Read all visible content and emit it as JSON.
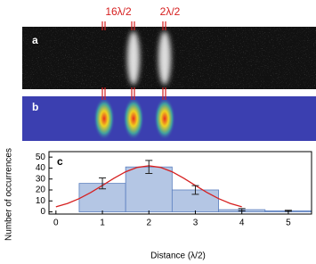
{
  "figure": {
    "top_labels": [
      "16λ/2",
      "2λ/2"
    ],
    "panels": [
      "a",
      "b",
      "c"
    ]
  },
  "chart_data": {
    "type": "histogram",
    "xlabel": "Distance (λ/2)",
    "ylabel": "Number of occurrences",
    "bins": [
      0.5,
      1.5,
      2.5,
      3.5,
      4.5,
      5.5
    ],
    "values": [
      26,
      41,
      20,
      2,
      1
    ],
    "errors": [
      5,
      6,
      4,
      1,
      0.5
    ],
    "color": "#b4c6e4",
    "edge_color": "#5b7fbf",
    "xlim": [
      -0.15,
      5.5
    ],
    "ylim": [
      -2,
      55
    ],
    "xticks": [
      0,
      1,
      2,
      3,
      4,
      5
    ],
    "yticks": [
      0,
      10,
      20,
      30,
      40,
      50
    ],
    "fit": {
      "color": "#d62020",
      "x": [
        0,
        0.25,
        0.5,
        0.75,
        1,
        1.25,
        1.5,
        1.75,
        2,
        2.25,
        2.5,
        2.75,
        3,
        3.25,
        3.5,
        3.75,
        4
      ],
      "y": [
        4.6,
        7.7,
        12.1,
        17.7,
        24.1,
        30.7,
        36.6,
        40.6,
        42,
        40.6,
        36.6,
        30.7,
        24.1,
        17.7,
        12.1,
        7.7,
        4.6
      ]
    }
  }
}
